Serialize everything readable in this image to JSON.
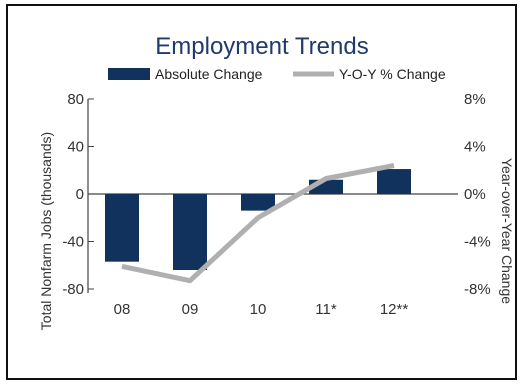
{
  "chart_data": {
    "type": "bar+line",
    "title": "Employment Trends",
    "categories": [
      "08",
      "09",
      "10",
      "11*",
      "12**"
    ],
    "series": [
      {
        "name": "Absolute Change",
        "type": "bar",
        "axis": "left",
        "values": [
          -57,
          -64,
          -14,
          12,
          21
        ]
      },
      {
        "name": "Y-O-Y % Change",
        "type": "line",
        "axis": "right",
        "values": [
          -6.1,
          -7.3,
          -2.0,
          1.3,
          2.4
        ]
      }
    ],
    "ylabel": "Total Nonfarm Jobs (thousands)",
    "ylabel_right": "Year-over-Year Change",
    "ylim": [
      -80,
      80
    ],
    "ylim_right": [
      -8,
      8
    ],
    "yticks_left": [
      "80",
      "40",
      "0",
      "-40",
      "-80"
    ],
    "yticks_right": [
      "8%",
      "4%",
      "0%",
      "-4%",
      "-8%"
    ],
    "legend_position": "top",
    "colors": {
      "bar": "#12325e",
      "line": "#b0b0b0",
      "title": "#1f3a6b"
    }
  }
}
